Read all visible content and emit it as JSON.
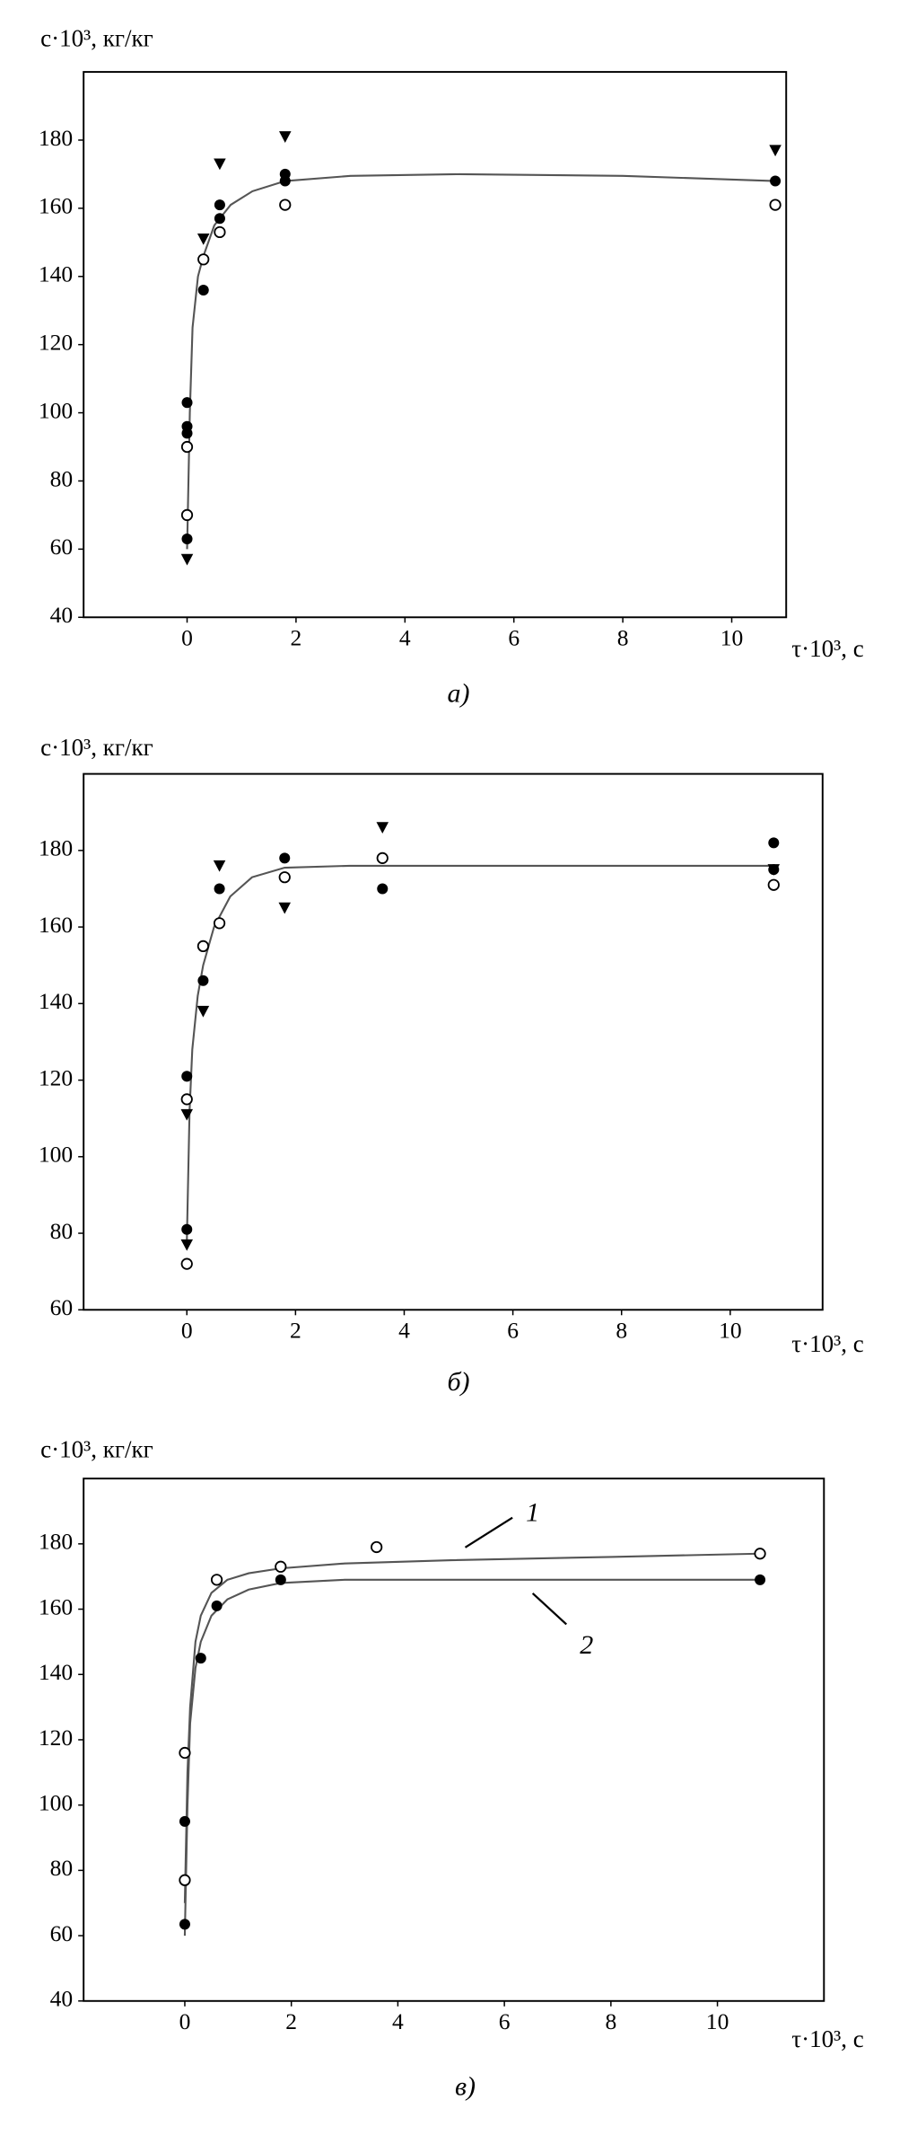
{
  "chart_data": [
    {
      "type": "scatter",
      "ylabel": "c·10³, кг/кг",
      "xlabel": "τ·10³, с",
      "caption": "а)",
      "xlim": [
        -1.9,
        11
      ],
      "ylim": [
        40,
        200
      ],
      "xticks": [
        0,
        2,
        4,
        6,
        8,
        10
      ],
      "yticks": [
        40,
        60,
        80,
        100,
        120,
        140,
        160,
        180
      ],
      "series": [
        {
          "marker": "filled-circle",
          "color": "#000000",
          "x": [
            0,
            0,
            0,
            0,
            0.3,
            0.6,
            0.6,
            1.8,
            1.8,
            10.8
          ],
          "values": [
            63,
            94,
            96,
            103,
            136,
            157,
            161,
            168,
            170,
            168
          ]
        },
        {
          "marker": "open-circle",
          "color": "#000000",
          "x": [
            0,
            0,
            0.3,
            0.6,
            1.8,
            10.8
          ],
          "values": [
            70,
            90,
            145,
            153,
            161,
            161
          ]
        },
        {
          "marker": "triangle",
          "color": "#000000",
          "x": [
            0,
            0.3,
            0.6,
            1.8,
            10.8
          ],
          "values": [
            57,
            151,
            173,
            181,
            177
          ]
        },
        {
          "marker": "line",
          "color": "#555555",
          "x": [
            0,
            0.05,
            0.1,
            0.2,
            0.3,
            0.5,
            0.8,
            1.2,
            1.8,
            3,
            5,
            8,
            10.8
          ],
          "values": [
            60,
            100,
            125,
            140,
            146,
            155,
            161,
            165,
            168,
            169.5,
            170,
            169.5,
            168
          ]
        }
      ]
    },
    {
      "type": "scatter",
      "ylabel": "c·10³, кг/кг",
      "xlabel": "τ·10³, с",
      "caption": "б)",
      "xlim": [
        -1.9,
        11.7
      ],
      "ylim": [
        60,
        200
      ],
      "xticks": [
        0,
        2,
        4,
        6,
        8,
        10
      ],
      "yticks": [
        60,
        80,
        100,
        120,
        140,
        160,
        180
      ],
      "series": [
        {
          "marker": "filled-circle",
          "color": "#000000",
          "x": [
            0,
            0,
            0.3,
            0.6,
            1.8,
            3.6,
            10.8,
            10.8
          ],
          "values": [
            81,
            121,
            146,
            170,
            178,
            170,
            182,
            175
          ]
        },
        {
          "marker": "open-circle",
          "color": "#000000",
          "x": [
            0,
            0,
            0.3,
            0.6,
            1.8,
            3.6,
            10.8
          ],
          "values": [
            72,
            115,
            155,
            161,
            173,
            178,
            171
          ]
        },
        {
          "marker": "triangle",
          "color": "#000000",
          "x": [
            0,
            0,
            0.3,
            0.6,
            1.8,
            3.6,
            10.8
          ],
          "values": [
            77,
            111,
            138,
            176,
            165,
            186,
            175
          ]
        },
        {
          "marker": "line",
          "color": "#555555",
          "x": [
            0,
            0.05,
            0.1,
            0.2,
            0.3,
            0.5,
            0.8,
            1.2,
            1.8,
            3,
            10.8
          ],
          "values": [
            78,
            112,
            128,
            142,
            150,
            160,
            168,
            173,
            175.5,
            176,
            176
          ]
        }
      ]
    },
    {
      "type": "scatter",
      "ylabel": "c·10³, кг/кг",
      "xlabel": "τ·10³, с",
      "caption": "в)",
      "xlim": [
        -1.9,
        12
      ],
      "ylim": [
        40,
        200
      ],
      "xticks": [
        0,
        2,
        4,
        6,
        8,
        10
      ],
      "yticks": [
        40,
        60,
        80,
        100,
        120,
        140,
        160,
        180
      ],
      "series": [
        {
          "marker": "open-circle",
          "color": "#000000",
          "x": [
            0,
            0,
            0.6,
            1.8,
            3.6,
            10.8
          ],
          "values": [
            77,
            116,
            169,
            173,
            179,
            177
          ]
        },
        {
          "marker": "filled-circle",
          "color": "#000000",
          "x": [
            0,
            0,
            0.3,
            0.6,
            1.8,
            10.8
          ],
          "values": [
            63.5,
            95,
            145,
            161,
            169,
            169
          ]
        },
        {
          "name": "1",
          "marker": "line",
          "color": "#555555",
          "x": [
            0,
            0.05,
            0.1,
            0.2,
            0.3,
            0.5,
            0.8,
            1.2,
            1.8,
            3,
            5,
            8,
            10.8
          ],
          "values": [
            70,
            110,
            130,
            150,
            158,
            165,
            169,
            171,
            172.5,
            174,
            175,
            176,
            177
          ]
        },
        {
          "name": "2",
          "marker": "line",
          "color": "#555555",
          "x": [
            0,
            0.05,
            0.1,
            0.2,
            0.3,
            0.5,
            0.8,
            1.2,
            1.8,
            3,
            5,
            8,
            10.8
          ],
          "values": [
            60,
            100,
            125,
            142,
            150,
            158,
            163,
            166,
            168,
            169,
            169,
            169,
            169
          ]
        }
      ]
    }
  ]
}
